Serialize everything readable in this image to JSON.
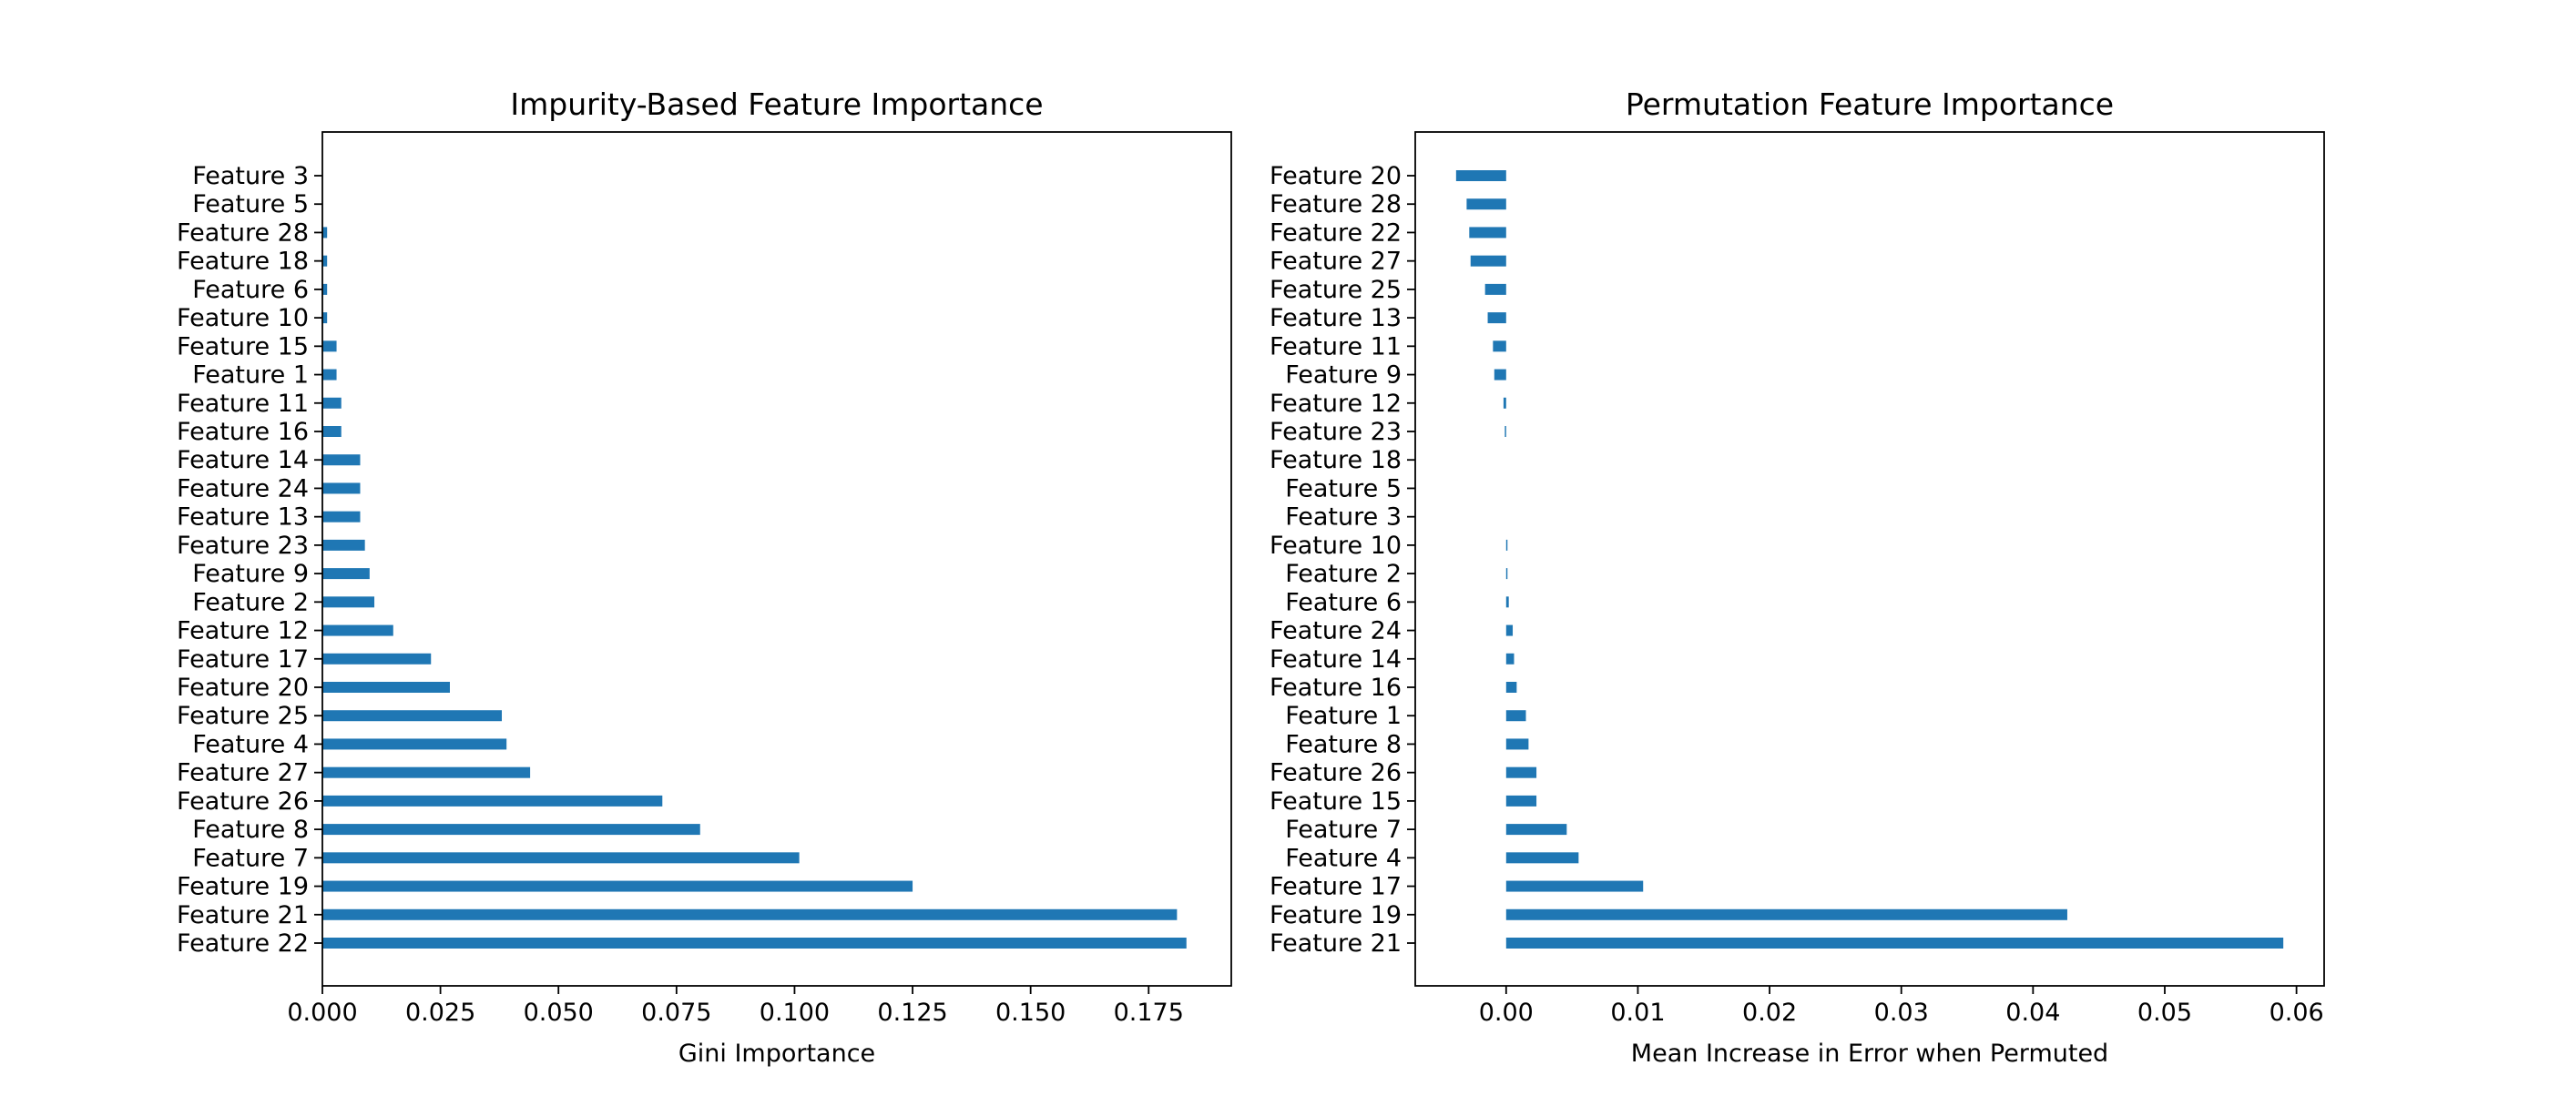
{
  "colors": {
    "bar": "#1f77b4",
    "axes": "#000000",
    "background": "#ffffff"
  },
  "chart_data": [
    {
      "type": "bar",
      "orientation": "horizontal",
      "title": "Impurity-Based Feature Importance",
      "xlabel": "Gini Importance",
      "ylabel": "",
      "xlim": [
        0,
        0.1925
      ],
      "xticks": [
        0,
        0.025,
        0.05,
        0.075,
        0.1,
        0.125,
        0.15,
        0.175
      ],
      "xtick_labels": [
        "0.000",
        "0.025",
        "0.050",
        "0.075",
        "0.100",
        "0.125",
        "0.150",
        "0.175"
      ],
      "grid": false,
      "categories": [
        "Feature 22",
        "Feature 21",
        "Feature 19",
        "Feature 7",
        "Feature 8",
        "Feature 26",
        "Feature 27",
        "Feature 4",
        "Feature 25",
        "Feature 20",
        "Feature 17",
        "Feature 12",
        "Feature 2",
        "Feature 9",
        "Feature 23",
        "Feature 13",
        "Feature 24",
        "Feature 14",
        "Feature 16",
        "Feature 11",
        "Feature 1",
        "Feature 15",
        "Feature 10",
        "Feature 6",
        "Feature 18",
        "Feature 28",
        "Feature 5",
        "Feature 3"
      ],
      "values": [
        0.183,
        0.181,
        0.125,
        0.101,
        0.08,
        0.072,
        0.044,
        0.039,
        0.038,
        0.027,
        0.023,
        0.015,
        0.011,
        0.01,
        0.009,
        0.008,
        0.008,
        0.008,
        0.004,
        0.004,
        0.003,
        0.003,
        0.001,
        0.001,
        0.001,
        0.001,
        0.0,
        0.0
      ]
    },
    {
      "type": "bar",
      "orientation": "horizontal",
      "title": "Permutation Feature Importance",
      "xlabel": "Mean Increase in Error when Permuted",
      "ylabel": "",
      "xlim": [
        -0.0069,
        0.0621
      ],
      "xticks": [
        0,
        0.01,
        0.02,
        0.03,
        0.04,
        0.05,
        0.06
      ],
      "xtick_labels": [
        "0.00",
        "0.01",
        "0.02",
        "0.03",
        "0.04",
        "0.05",
        "0.06"
      ],
      "grid": false,
      "categories": [
        "Feature 21",
        "Feature 19",
        "Feature 17",
        "Feature 4",
        "Feature 7",
        "Feature 15",
        "Feature 26",
        "Feature 8",
        "Feature 1",
        "Feature 16",
        "Feature 14",
        "Feature 24",
        "Feature 6",
        "Feature 2",
        "Feature 10",
        "Feature 3",
        "Feature 5",
        "Feature 18",
        "Feature 23",
        "Feature 12",
        "Feature 9",
        "Feature 11",
        "Feature 13",
        "Feature 25",
        "Feature 27",
        "Feature 22",
        "Feature 28",
        "Feature 20"
      ],
      "values": [
        0.059,
        0.0426,
        0.0104,
        0.0055,
        0.0046,
        0.0023,
        0.0023,
        0.0017,
        0.0015,
        0.0008,
        0.0006,
        0.0005,
        0.0002,
        0.0001,
        0.0001,
        0.0,
        0.0,
        0.0,
        -0.0001,
        -0.0002,
        -0.0009,
        -0.001,
        -0.0014,
        -0.0016,
        -0.0027,
        -0.0028,
        -0.003,
        -0.0038
      ]
    }
  ]
}
